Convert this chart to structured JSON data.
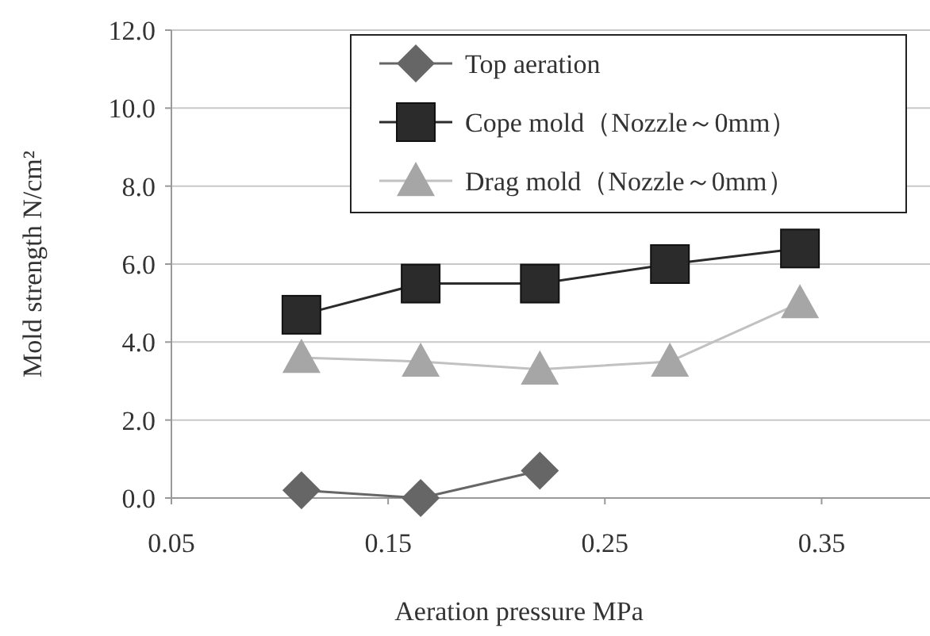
{
  "chart_data": {
    "type": "line",
    "xlabel": "Aeration pressure MPa",
    "ylabel": "Mold strength N/cm²",
    "xlim": [
      0.05,
      0.4
    ],
    "xticks": [
      0.05,
      0.15,
      0.25,
      0.35
    ],
    "ylim": [
      0,
      12
    ],
    "yticks": [
      {
        "value": 0,
        "label": "0.0"
      },
      {
        "value": 2,
        "label": "2.0"
      },
      {
        "value": 4,
        "label": "4.0"
      },
      {
        "value": 6,
        "label": "6.0"
      },
      {
        "value": 8,
        "label": "8.0"
      },
      {
        "value": 10,
        "label": "10.0"
      },
      {
        "value": 12,
        "label": "12.0"
      }
    ],
    "grid": "y",
    "legend": "top right",
    "series": [
      {
        "name": "Top aeration",
        "color": "#666666",
        "marker": "diamond",
        "x": [
          0.11,
          0.165,
          0.22
        ],
        "values": [
          0.2,
          0.0,
          0.7
        ]
      },
      {
        "name": "Cope mold（Nozzle～0mm）",
        "color": "#2b2b2b",
        "marker": "square",
        "x": [
          0.11,
          0.165,
          0.22,
          0.28,
          0.34
        ],
        "values": [
          4.7,
          5.5,
          5.5,
          6.0,
          6.4
        ]
      },
      {
        "name": "Drag mold（Nozzle～0mm）",
        "color": "#a6a6a6",
        "marker": "triangle",
        "x": [
          0.11,
          0.165,
          0.22,
          0.28,
          0.34
        ],
        "values": [
          3.6,
          3.5,
          3.3,
          3.5,
          5.0
        ]
      }
    ]
  }
}
